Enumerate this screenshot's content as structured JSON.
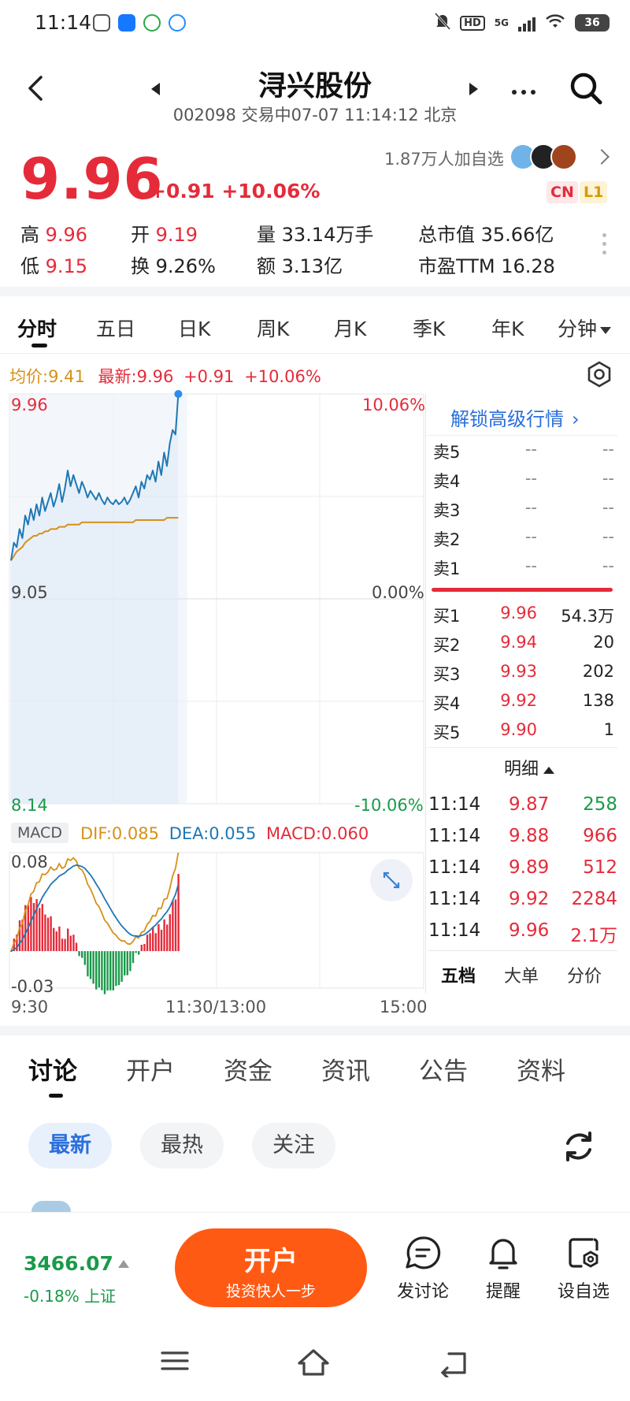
{
  "status_bar": {
    "time": "11:14",
    "network": "5G",
    "battery": "36"
  },
  "header": {
    "stock_name": "浔兴股份",
    "subtitle": "002098 交易中07-07 11:14:12 北京"
  },
  "quote": {
    "price": "9.96",
    "change": "+0.91  +10.06%",
    "followers": "1.87万人加自选",
    "tags": [
      "CN",
      "L1"
    ],
    "stats": {
      "high_label": "高",
      "high": "9.96",
      "open_label": "开",
      "open": "9.19",
      "volume": "量 33.14万手",
      "market_cap": "总市值 35.66亿",
      "low_label": "低",
      "low": "9.15",
      "turnover_label": "换",
      "turnover": "9.26%",
      "amount": "额 3.13亿",
      "pe": "市盈TTM 16.28"
    }
  },
  "chart_tabs": [
    "分时",
    "五日",
    "日K",
    "周K",
    "月K",
    "季K",
    "年K",
    "分钟"
  ],
  "intraday": {
    "avg_label": "均价:9.41",
    "latest_label": "最新:9.96",
    "latest_change": "+0.91",
    "latest_pct": "+10.06%",
    "top_price": "9.96",
    "top_pct": "10.06%",
    "mid_price": "9.05",
    "mid_pct": "0.00%",
    "bottom_price": "8.14",
    "bottom_pct": "-10.06%"
  },
  "chart_data": {
    "type": "line",
    "title": "",
    "ylim": [
      8.14,
      9.96
    ],
    "reference_price": 9.05,
    "x_ticks": [
      "9:30",
      "11:30/13:00",
      "15:00"
    ],
    "series": [
      {
        "name": "最新",
        "values": [
          9.22,
          9.3,
          9.28,
          9.36,
          9.32,
          9.42,
          9.38,
          9.45,
          9.4,
          9.47,
          9.42,
          9.5,
          9.44,
          9.48,
          9.52,
          9.46,
          9.5,
          9.56,
          9.48,
          9.54,
          9.62,
          9.55,
          9.6,
          9.56,
          9.52,
          9.57,
          9.54,
          9.5,
          9.53,
          9.51,
          9.49,
          9.52,
          9.49,
          9.47,
          9.5,
          9.48,
          9.47,
          9.49,
          9.47,
          9.48,
          9.5,
          9.47,
          9.49,
          9.52,
          9.55,
          9.5,
          9.57,
          9.54,
          9.6,
          9.58,
          9.62,
          9.57,
          9.66,
          9.6,
          9.7,
          9.64,
          9.74,
          9.8,
          9.78,
          9.96
        ]
      },
      {
        "name": "均价",
        "values": [
          9.22,
          9.24,
          9.26,
          9.27,
          9.28,
          9.3,
          9.31,
          9.32,
          9.33,
          9.33,
          9.34,
          9.34,
          9.35,
          9.35,
          9.36,
          9.36,
          9.36,
          9.37,
          9.37,
          9.37,
          9.38,
          9.38,
          9.38,
          9.38,
          9.38,
          9.39,
          9.39,
          9.39,
          9.39,
          9.39,
          9.39,
          9.39,
          9.39,
          9.39,
          9.39,
          9.39,
          9.39,
          9.39,
          9.39,
          9.39,
          9.39,
          9.39,
          9.39,
          9.39,
          9.4,
          9.4,
          9.4,
          9.4,
          9.4,
          9.4,
          9.4,
          9.4,
          9.4,
          9.4,
          9.4,
          9.41,
          9.41,
          9.41,
          9.41,
          9.41
        ]
      }
    ],
    "macd": {
      "dif": "DIF:0.085",
      "dea": "DEA:0.055",
      "macd": "MACD:0.060",
      "top": "0.08",
      "bottom": "-0.03",
      "ylim": [
        -0.03,
        0.08
      ]
    }
  },
  "order_book": {
    "unlock": "解锁高级行情",
    "asks": [
      {
        "label": "卖5",
        "price": "--",
        "volume": "--"
      },
      {
        "label": "卖4",
        "price": "--",
        "volume": "--"
      },
      {
        "label": "卖3",
        "price": "--",
        "volume": "--"
      },
      {
        "label": "卖2",
        "price": "--",
        "volume": "--"
      },
      {
        "label": "卖1",
        "price": "--",
        "volume": "--"
      }
    ],
    "bids": [
      {
        "label": "买1",
        "price": "9.96",
        "volume": "54.3万"
      },
      {
        "label": "买2",
        "price": "9.94",
        "volume": "20"
      },
      {
        "label": "买3",
        "price": "9.93",
        "volume": "202"
      },
      {
        "label": "买4",
        "price": "9.92",
        "volume": "138"
      },
      {
        "label": "买5",
        "price": "9.90",
        "volume": "1"
      }
    ],
    "detail_label": "明细",
    "ticks": [
      {
        "time": "11:14",
        "price": "9.87",
        "qty": "258",
        "dir": "buy"
      },
      {
        "time": "11:14",
        "price": "9.88",
        "qty": "966",
        "dir": "sell"
      },
      {
        "time": "11:14",
        "price": "9.89",
        "qty": "512",
        "dir": "sell"
      },
      {
        "time": "11:14",
        "price": "9.92",
        "qty": "2284",
        "dir": "sell"
      },
      {
        "time": "11:14",
        "price": "9.96",
        "qty": "2.1万",
        "dir": "sell"
      }
    ],
    "tabs": [
      "五档",
      "大单",
      "分价"
    ]
  },
  "content_tabs": [
    "讨论",
    "开户",
    "资金",
    "资讯",
    "公告",
    "资料"
  ],
  "filters": [
    "最新",
    "最热",
    "关注"
  ],
  "bottom_bar": {
    "index_value": "3466.07",
    "index_change": "-0.18% 上证",
    "open_button": "开户",
    "open_sub": "投资快人一步",
    "actions": [
      "发讨论",
      "提醒",
      "设自选"
    ]
  },
  "colors": {
    "up": "#e52b3a",
    "down": "#1a9a4a",
    "accent": "#2a6fdb",
    "cta": "#ff5a14",
    "price_line": "#1f78b4",
    "avg_line": "#d4921a"
  }
}
